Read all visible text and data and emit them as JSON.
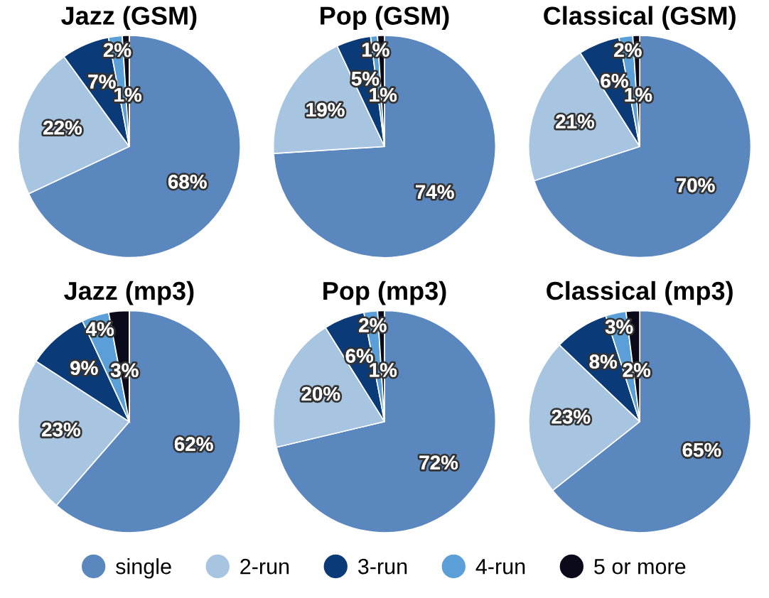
{
  "chart_data": [
    {
      "type": "pie",
      "title": "Jazz (GSM)",
      "categories": [
        "single",
        "2-run",
        "3-run",
        "4-run",
        "5 or more"
      ],
      "values": [
        68,
        22,
        7,
        2,
        1
      ],
      "value_labels": [
        "68%",
        "22%",
        "7%",
        "2%",
        "1%"
      ],
      "colors": [
        "#5b87bf",
        "#a7c4e0",
        "#0b3a78",
        "#5a9fd8",
        "#0a0a1a"
      ],
      "legend": "bottom"
    },
    {
      "type": "pie",
      "title": "Pop (GSM)",
      "categories": [
        null,
        null,
        null,
        null,
        null
      ],
      "values": [
        74,
        19,
        5,
        1,
        1
      ],
      "value_labels": [
        "74%",
        "19%",
        "5%",
        "1%",
        "1%"
      ],
      "colors": [
        "#5b87bf",
        "#a7c4e0",
        "#0b3a78",
        "#5a9fd8",
        "#0a0a1a"
      ]
    },
    {
      "type": "pie",
      "title": "Classical (GSM)",
      "categories": [
        null,
        null,
        null,
        null,
        null
      ],
      "values": [
        70,
        21,
        6,
        2,
        1
      ],
      "value_labels": [
        "70%",
        "21%",
        "6%",
        "2%",
        "1%"
      ],
      "colors": [
        "#5b87bf",
        "#a7c4e0",
        "#0b3a78",
        "#5a9fd8",
        "#0a0a1a"
      ]
    },
    {
      "type": "pie",
      "title": "Jazz (mp3)",
      "categories": [
        null,
        null,
        null,
        null,
        null
      ],
      "values": [
        62,
        23,
        9,
        4,
        3
      ],
      "value_labels": [
        "62%",
        "23%",
        "9%",
        "4%",
        "3%"
      ],
      "colors": [
        "#5b87bf",
        "#a7c4e0",
        "#0b3a78",
        "#5a9fd8",
        "#0a0a1a"
      ]
    },
    {
      "type": "pie",
      "title": "Pop (mp3)",
      "categories": [
        null,
        null,
        null,
        null,
        null
      ],
      "values": [
        72,
        20,
        6,
        2,
        1
      ],
      "value_labels": [
        "72%",
        "20%",
        "6%",
        "2%",
        "1%"
      ],
      "colors": [
        "#5b87bf",
        "#a7c4e0",
        "#0b3a78",
        "#5a9fd8",
        "#0a0a1a"
      ]
    },
    {
      "type": "pie",
      "title": "Classical (mp3)",
      "categories": [
        null,
        null,
        null,
        null,
        null
      ],
      "values": [
        65,
        23,
        8,
        3,
        2
      ],
      "value_labels": [
        "65%",
        "23%",
        "8%",
        "3%",
        "2%"
      ],
      "colors": [
        "#5b87bf",
        "#a7c4e0",
        "#0b3a78",
        "#5a9fd8",
        "#0a0a1a"
      ]
    }
  ]
}
